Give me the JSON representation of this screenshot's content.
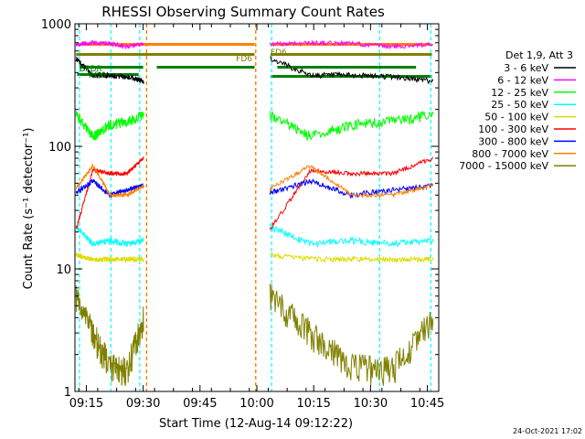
{
  "colors": {
    "background": "#ffffff",
    "axis": "#000000",
    "3-6": "#000000",
    "6-12": "#ff00ff",
    "12-25": "#00ff00",
    "25-50": "#00ffff",
    "50-100": "#dcdc00",
    "100-300": "#ff0000",
    "300-800": "#0000ff",
    "800-7000": "#ff8000",
    "7000-15000": "#808000",
    "orange_marker": "#ff8000",
    "cyan_marker": "#00ffff",
    "status_bar": "#008000",
    "status_bar_top": "#ff8000",
    "olive_bar": "#808000"
  },
  "chart_data": {
    "type": "line",
    "title": "RHESSI Observing Summary Count Rates",
    "xlabel": "Start Time (12-Aug-14 09:12:22)",
    "ylabel": "Count Rate (s⁻¹ detector⁻¹)",
    "yscale": "log",
    "xlim": [
      9.2,
      10.8
    ],
    "ylim": [
      1,
      1000
    ],
    "x_ticks": [
      {
        "value": 9.25,
        "label": "09:15"
      },
      {
        "value": 9.5,
        "label": "09:30"
      },
      {
        "value": 9.75,
        "label": "09:45"
      },
      {
        "value": 10.0,
        "label": "10:00"
      },
      {
        "value": 10.25,
        "label": "10:15"
      },
      {
        "value": 10.5,
        "label": "10:30"
      },
      {
        "value": 10.75,
        "label": "10:45"
      }
    ],
    "y_ticks": [
      {
        "value": 1,
        "label": "1"
      },
      {
        "value": 10,
        "label": "10"
      },
      {
        "value": 100,
        "label": "100"
      },
      {
        "value": 1000,
        "label": "1000"
      }
    ],
    "legend_header": "Det 1,9, Att 3",
    "legend_position": "right",
    "segments": [
      [
        9.205,
        9.503
      ],
      [
        10.058,
        10.775
      ]
    ],
    "series": [
      {
        "name": "3 - 6 keV",
        "key": "3-6",
        "values": [
          520,
          380,
          380,
          370,
          340
        ],
        "noise": 0.05
      },
      {
        "name": "6 - 12 keV",
        "key": "6-12",
        "values": [
          680,
          700,
          690,
          650,
          680
        ],
        "noise": 0.04
      },
      {
        "name": "12 - 25 keV",
        "key": "12-25",
        "values": [
          180,
          120,
          150,
          160,
          180
        ],
        "noise": 0.1
      },
      {
        "name": "25 - 50 keV",
        "key": "25-50",
        "values": [
          22,
          16,
          17,
          16,
          17
        ],
        "noise": 0.06
      },
      {
        "name": "50 - 100 keV",
        "key": "50-100",
        "values": [
          13,
          12,
          12,
          12,
          12
        ],
        "noise": 0.05
      },
      {
        "name": "100 - 300 keV",
        "key": "100-300",
        "values": [
          21,
          64,
          60,
          60,
          80
        ],
        "noise": 0.04
      },
      {
        "name": "300 - 800 keV",
        "key": "300-800",
        "values": [
          42,
          52,
          40,
          44,
          48
        ],
        "noise": 0.05
      },
      {
        "name": "800 - 7000 keV",
        "key": "800-7000",
        "values": [
          45,
          70,
          40,
          40,
          48
        ],
        "noise": 0.04
      },
      {
        "name": "7000 - 15000 keV",
        "key": "7000-15000",
        "values": [
          6,
          3,
          1.6,
          1.5,
          4
        ],
        "noise": 0.28
      }
    ],
    "orange_markers": [
      9.515,
      9.995
    ],
    "cyan_markers": [
      9.22,
      9.358,
      9.485,
      10.065,
      10.54,
      10.765
    ],
    "annotations": {
      "fd6_left": "FD6",
      "fd6_right": "FD6",
      "rd6_left": "RD6",
      "bp_left": "BPDR"
    }
  },
  "footer": {
    "date": "24-Oct-2021 17:02"
  }
}
